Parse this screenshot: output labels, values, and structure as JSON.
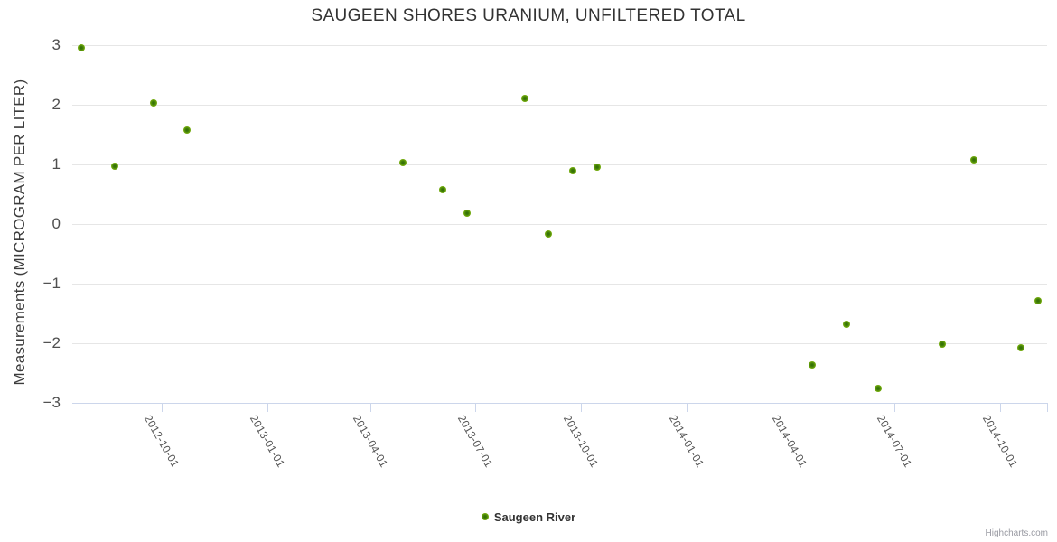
{
  "chart_data": {
    "type": "scatter",
    "title": "SAUGEEN SHORES URANIUM, UNFILTERED TOTAL",
    "xlabel": "",
    "ylabel": "Measurements (MICROGRAM PER LITER)",
    "ylim": [
      -3,
      3
    ],
    "yticks": [
      3,
      2,
      1,
      0,
      -1,
      -2,
      -3
    ],
    "xticks": [
      "2012-10-01",
      "2013-01-01",
      "2013-04-01",
      "2013-07-01",
      "2013-10-01",
      "2014-01-01",
      "2014-04-01",
      "2014-07-01",
      "2014-10-01"
    ],
    "grid": "horizontal-only",
    "legend_position": "bottom-center",
    "credits_label": "Highcharts.com",
    "colors": {
      "series_green": "#7ab500",
      "grid_line": "#e6e6e6",
      "axis_line": "#ccd6eb",
      "title_text": "#333333",
      "label_text": "#545454"
    },
    "series": [
      {
        "name": "Saugeen River",
        "color": "#7ab500",
        "points": [
          {
            "date": "2012-07-23",
            "value": 2.95
          },
          {
            "date": "2012-08-21",
            "value": 0.97
          },
          {
            "date": "2012-09-24",
            "value": 2.03
          },
          {
            "date": "2012-10-23",
            "value": 1.57
          },
          {
            "date": "2013-04-29",
            "value": 1.03
          },
          {
            "date": "2013-06-03",
            "value": 0.57
          },
          {
            "date": "2013-06-24",
            "value": 0.18
          },
          {
            "date": "2013-08-13",
            "value": 2.1
          },
          {
            "date": "2013-09-03",
            "value": -0.17
          },
          {
            "date": "2013-09-24",
            "value": 0.9
          },
          {
            "date": "2013-10-15",
            "value": 0.96
          },
          {
            "date": "2014-04-20",
            "value": -2.36
          },
          {
            "date": "2014-05-20",
            "value": -1.68
          },
          {
            "date": "2014-06-17",
            "value": -2.76
          },
          {
            "date": "2014-08-12",
            "value": -2.02
          },
          {
            "date": "2014-09-08",
            "value": 1.08
          },
          {
            "date": "2014-10-19",
            "value": -2.08
          },
          {
            "date": "2014-11-03",
            "value": -1.29
          }
        ]
      }
    ]
  }
}
